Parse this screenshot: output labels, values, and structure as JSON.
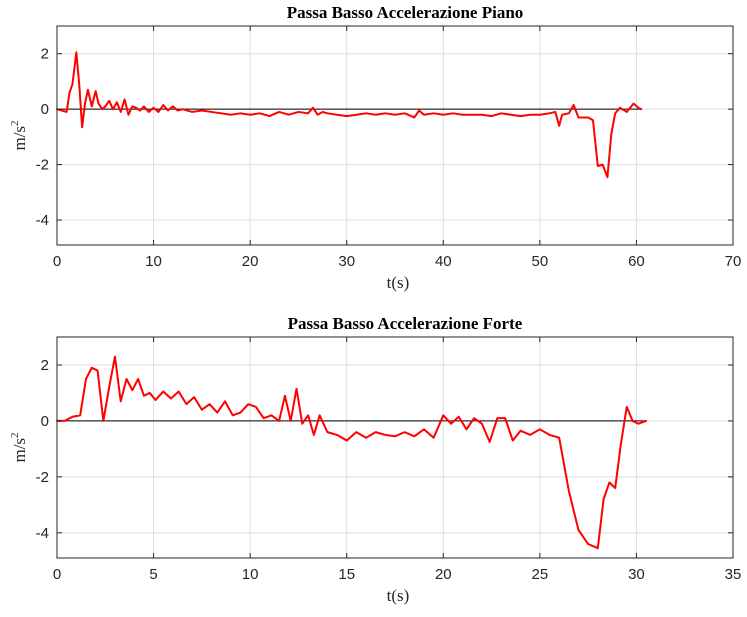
{
  "chart_data": [
    {
      "type": "line",
      "title": "Passa Basso Accelerazione Piano",
      "xlabel": "t(s)",
      "ylabel": "m/s",
      "ylabel_superscript": "2",
      "xlim": [
        0,
        70
      ],
      "ylim": [
        -4.9,
        3
      ],
      "xticks": [
        0,
        10,
        20,
        30,
        40,
        50,
        60,
        70
      ],
      "yticks": [
        -4,
        -2,
        0,
        2
      ],
      "grid": true,
      "legend": "none",
      "reference_line": {
        "y": 0,
        "x_range": [
          0,
          60.5
        ],
        "color": "#000000"
      },
      "series": [
        {
          "color": "#ff0000",
          "x": [
            0,
            0.5,
            1,
            1.3,
            1.6,
            2.0,
            2.3,
            2.6,
            2.9,
            3.2,
            3.6,
            4.0,
            4.3,
            4.7,
            5.0,
            5.4,
            5.8,
            6.2,
            6.6,
            7.0,
            7.4,
            7.8,
            8.2,
            8.6,
            9.0,
            9.5,
            10.0,
            10.5,
            11.0,
            11.5,
            12.0,
            12.5,
            13.0,
            14,
            15,
            16,
            17,
            18,
            19,
            20,
            21,
            22,
            23,
            24,
            25,
            26,
            26.5,
            27,
            27.5,
            28,
            29,
            30,
            31,
            32,
            33,
            34,
            35,
            36,
            37,
            37.5,
            38,
            39,
            40,
            41,
            42,
            43,
            44,
            45,
            46,
            47,
            48,
            49,
            50,
            51,
            51.6,
            52.0,
            52.3,
            53,
            53.5,
            54,
            55,
            55.5,
            56,
            56.5,
            57,
            57.4,
            57.8,
            58.3,
            59,
            59.7,
            60.2,
            60.5
          ],
          "values": [
            0,
            -0.05,
            -0.1,
            0.6,
            0.9,
            2.05,
            0.9,
            -0.65,
            0.2,
            0.7,
            0.1,
            0.65,
            0.2,
            0.0,
            0.1,
            0.3,
            0.0,
            0.25,
            -0.1,
            0.35,
            -0.2,
            0.1,
            0.05,
            -0.05,
            0.1,
            -0.1,
            0.05,
            -0.1,
            0.15,
            -0.05,
            0.1,
            -0.05,
            0.0,
            -0.1,
            -0.05,
            -0.1,
            -0.15,
            -0.2,
            -0.15,
            -0.2,
            -0.15,
            -0.25,
            -0.1,
            -0.2,
            -0.1,
            -0.15,
            0.05,
            -0.2,
            -0.1,
            -0.15,
            -0.2,
            -0.25,
            -0.2,
            -0.15,
            -0.2,
            -0.15,
            -0.2,
            -0.15,
            -0.3,
            -0.05,
            -0.2,
            -0.15,
            -0.2,
            -0.15,
            -0.2,
            -0.2,
            -0.2,
            -0.25,
            -0.15,
            -0.2,
            -0.25,
            -0.2,
            -0.2,
            -0.15,
            -0.1,
            -0.6,
            -0.2,
            -0.15,
            0.15,
            -0.3,
            -0.3,
            -0.4,
            -2.05,
            -2.0,
            -2.45,
            -0.9,
            -0.15,
            0.05,
            -0.1,
            0.2,
            0.05,
            0.0
          ]
        }
      ]
    },
    {
      "type": "line",
      "title": "Passa Basso Accelerazione Forte",
      "xlabel": "t(s)",
      "ylabel": "m/s",
      "ylabel_superscript": "2",
      "xlim": [
        0,
        35
      ],
      "ylim": [
        -4.9,
        3
      ],
      "xticks": [
        0,
        5,
        10,
        15,
        20,
        25,
        30,
        35
      ],
      "yticks": [
        -4,
        -2,
        0,
        2
      ],
      "grid": true,
      "legend": "none",
      "reference_line": {
        "y": 0,
        "x_range": [
          0,
          30.5
        ],
        "color": "#000000"
      },
      "series": [
        {
          "color": "#ff0000",
          "x": [
            0,
            0.4,
            0.8,
            1.2,
            1.5,
            1.8,
            2.1,
            2.4,
            2.7,
            3.0,
            3.3,
            3.6,
            3.9,
            4.2,
            4.5,
            4.8,
            5.1,
            5.5,
            5.9,
            6.3,
            6.7,
            7.1,
            7.5,
            7.9,
            8.3,
            8.7,
            9.1,
            9.5,
            9.9,
            10.3,
            10.7,
            11.1,
            11.5,
            11.8,
            12.1,
            12.4,
            12.7,
            13.0,
            13.3,
            13.6,
            14.0,
            14.5,
            15.0,
            15.5,
            16.0,
            16.5,
            17.0,
            17.5,
            18.0,
            18.5,
            19.0,
            19.5,
            20.0,
            20.4,
            20.8,
            21.2,
            21.6,
            22.0,
            22.4,
            22.8,
            23.2,
            23.6,
            24.0,
            24.5,
            25.0,
            25.5,
            26.0,
            26.5,
            27.0,
            27.5,
            28.0,
            28.3,
            28.6,
            28.9,
            29.2,
            29.5,
            29.8,
            30.1,
            30.5
          ],
          "values": [
            0,
            0.0,
            0.15,
            0.2,
            1.5,
            1.9,
            1.8,
            0.0,
            1.2,
            2.3,
            0.7,
            1.5,
            1.1,
            1.5,
            0.9,
            1.0,
            0.75,
            1.05,
            0.8,
            1.05,
            0.6,
            0.85,
            0.4,
            0.6,
            0.3,
            0.7,
            0.2,
            0.3,
            0.6,
            0.5,
            0.1,
            0.2,
            0.0,
            0.9,
            0.0,
            1.15,
            -0.1,
            0.2,
            -0.5,
            0.2,
            -0.4,
            -0.5,
            -0.7,
            -0.4,
            -0.6,
            -0.4,
            -0.5,
            -0.55,
            -0.4,
            -0.55,
            -0.3,
            -0.6,
            0.2,
            -0.1,
            0.15,
            -0.3,
            0.1,
            -0.1,
            -0.75,
            0.1,
            0.1,
            -0.7,
            -0.35,
            -0.5,
            -0.3,
            -0.5,
            -0.6,
            -2.5,
            -3.9,
            -4.4,
            -4.55,
            -2.8,
            -2.2,
            -2.4,
            -0.8,
            0.5,
            0.0,
            -0.1,
            0.0
          ]
        }
      ]
    }
  ]
}
